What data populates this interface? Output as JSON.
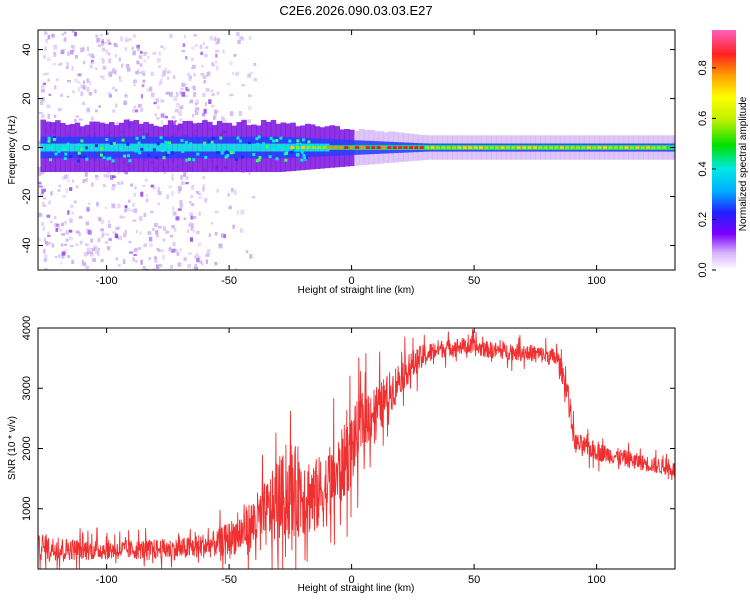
{
  "title": "C2E6.2026.090.03.03.E27",
  "colors": {
    "snr_line": "#f03030",
    "spectral_core": "#e8202a",
    "spectral_band": "#18e0e0",
    "spectral_halo": "#7a10e0",
    "noise": "#c8a8f0"
  },
  "chart_data": [
    {
      "type": "heatmap",
      "name": "spectrogram",
      "xlabel": "Height of straight line (km)",
      "ylabel": "Frequency (Hz)",
      "xlim": [
        -128,
        132
      ],
      "ylim": [
        -50,
        48
      ],
      "xticks": [
        -100,
        -50,
        0,
        50,
        100
      ],
      "yticks": [
        -40,
        -20,
        0,
        20,
        40
      ],
      "grid": false,
      "description_values": {
        "main_band_center_hz": 0,
        "band_halfwidth_hz_left": 8,
        "band_halfwidth_hz_right": 3,
        "strong_noise_x_range_km": [
          -128,
          -55
        ],
        "peak_amplitude_x_km": [
          -10,
          30
        ]
      }
    },
    {
      "type": "heatmap-colorbar",
      "name": "colorbar",
      "label": "Normalized spectral amplitude",
      "range": [
        0,
        0.95
      ],
      "ticks": [
        0.0,
        0.2,
        0.4,
        0.6,
        0.8
      ],
      "tick_labels": [
        "0.0",
        "0.2",
        "0.4",
        "0.6",
        "0.8"
      ],
      "colormap": [
        "#ffffff",
        "#d9b3ff",
        "#7a00ff",
        "#2020ff",
        "#00b0ff",
        "#00e8e8",
        "#00e000",
        "#b8f000",
        "#ffff00",
        "#ffa000",
        "#ff2020",
        "#ff60c0"
      ]
    },
    {
      "type": "line",
      "name": "snr",
      "xlabel": "Height of straight line (km)",
      "ylabel": "SNR (10 * v/v)",
      "xlim": [
        -128,
        132
      ],
      "ylim": [
        0,
        4000
      ],
      "xticks": [
        -100,
        -50,
        0,
        50,
        100
      ],
      "yticks": [
        1000,
        2000,
        3000,
        4000
      ],
      "grid": false,
      "envelope": {
        "x": [
          -128,
          -110,
          -90,
          -70,
          -55,
          -45,
          -35,
          -28,
          -22,
          -15,
          -8,
          0,
          5,
          12,
          20,
          28,
          35,
          45,
          60,
          75,
          84,
          88,
          91,
          100,
          115,
          132
        ],
        "center": [
          350,
          320,
          320,
          330,
          420,
          600,
          900,
          1200,
          1300,
          1200,
          1400,
          2000,
          2500,
          2700,
          3200,
          3500,
          3650,
          3700,
          3620,
          3580,
          3500,
          3000,
          2100,
          1950,
          1800,
          1650
        ],
        "spread": [
          300,
          250,
          230,
          260,
          320,
          500,
          800,
          1000,
          1100,
          900,
          900,
          900,
          700,
          600,
          400,
          300,
          220,
          200,
          200,
          200,
          220,
          300,
          250,
          220,
          200,
          180
        ]
      }
    }
  ]
}
